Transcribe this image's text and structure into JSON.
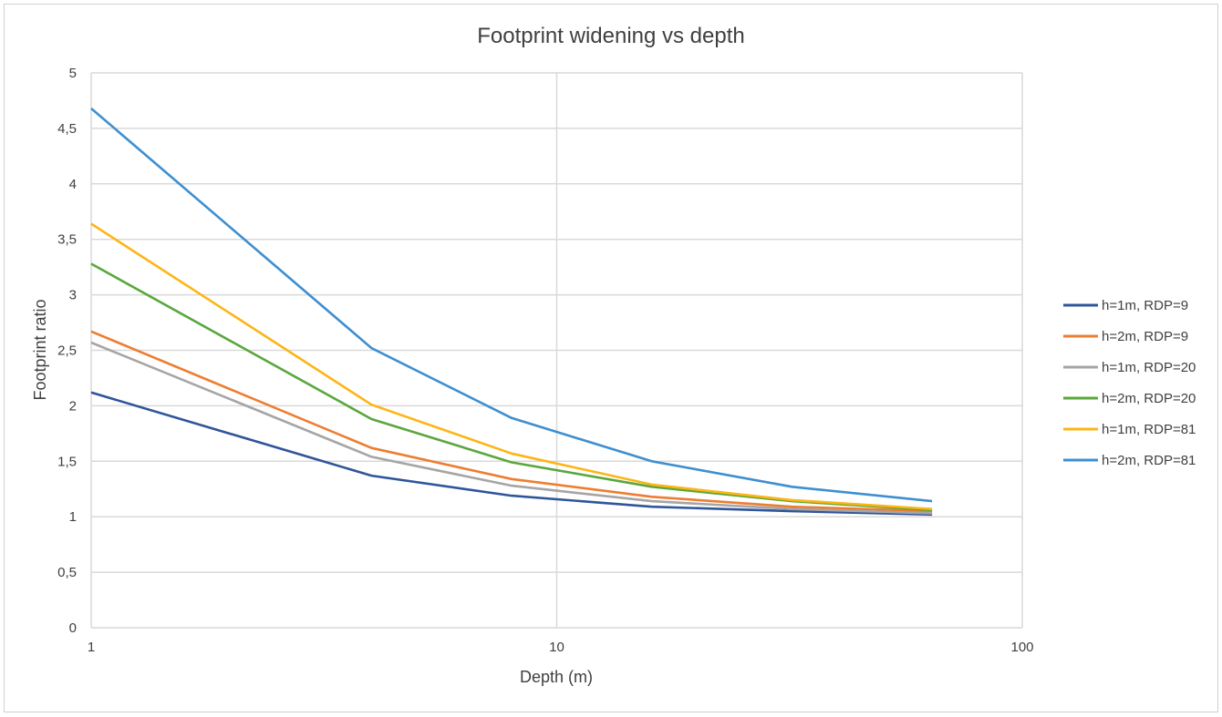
{
  "chart_data": {
    "type": "line",
    "title": "Footprint widening vs depth",
    "xlabel": "Depth (m)",
    "ylabel": "Footprint ratio",
    "x_scale": "log",
    "xlim": [
      1,
      100
    ],
    "ylim": [
      0,
      5
    ],
    "x_ticks": [
      "1",
      "10",
      "100"
    ],
    "y_ticks": [
      "0",
      "0,5",
      "1",
      "1,5",
      "2",
      "2,5",
      "3",
      "3,5",
      "4",
      "4,5",
      "5"
    ],
    "grid": true,
    "legend_position": "right",
    "x": [
      1,
      4,
      8,
      16,
      32,
      64
    ],
    "series": [
      {
        "name": "h=1m, RDP=9",
        "color": "#2f559a",
        "values": [
          2.12,
          1.37,
          1.19,
          1.09,
          1.05,
          1.02
        ]
      },
      {
        "name": "h=2m, RDP=9",
        "color": "#ed7d31",
        "values": [
          2.67,
          1.62,
          1.34,
          1.18,
          1.09,
          1.05
        ]
      },
      {
        "name": "h=1m, RDP=20",
        "color": "#a5a5a5",
        "values": [
          2.57,
          1.54,
          1.28,
          1.14,
          1.07,
          1.03
        ]
      },
      {
        "name": "h=2m, RDP=20",
        "color": "#5aa73e",
        "values": [
          3.28,
          1.88,
          1.49,
          1.27,
          1.14,
          1.06
        ]
      },
      {
        "name": "h=1m, RDP=81",
        "color": "#fdb515",
        "values": [
          3.64,
          2.01,
          1.57,
          1.29,
          1.15,
          1.07
        ]
      },
      {
        "name": "h=2m, RDP=81",
        "color": "#3e8fd0",
        "values": [
          4.68,
          2.52,
          1.89,
          1.5,
          1.27,
          1.14
        ]
      }
    ]
  }
}
